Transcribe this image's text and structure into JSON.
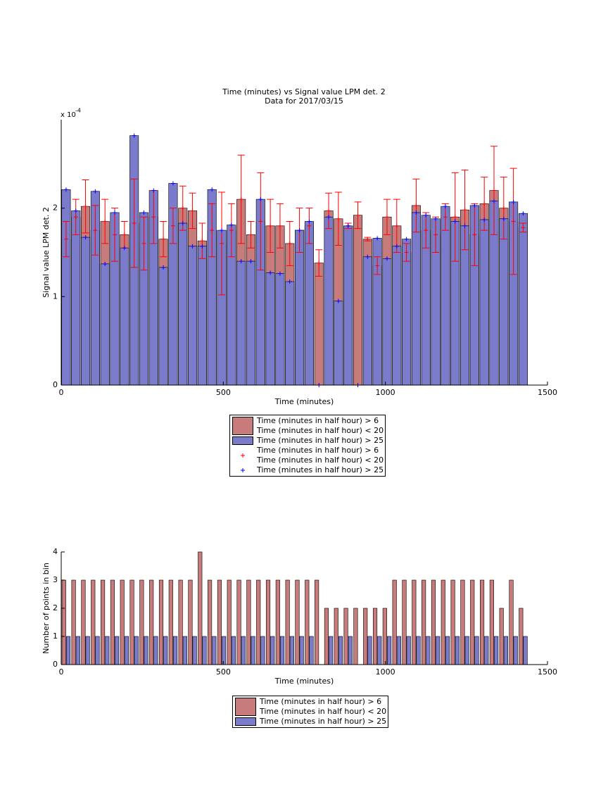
{
  "chart_data": [
    {
      "type": "bar",
      "title": "Time (minutes) vs Signal value LPM det. 2",
      "subtitle": "Data for 2017/03/15",
      "x_label": "Time (minutes)",
      "y_label": "Signal value LPM det. 2",
      "y_scale_label": "x 10",
      "y_scale_exponent": "-4",
      "x": [
        15,
        45,
        75,
        105,
        135,
        165,
        195,
        225,
        255,
        285,
        315,
        345,
        375,
        405,
        435,
        465,
        495,
        525,
        555,
        585,
        615,
        645,
        675,
        705,
        735,
        765,
        795,
        825,
        855,
        885,
        915,
        945,
        975,
        1005,
        1035,
        1065,
        1095,
        1125,
        1155,
        1185,
        1215,
        1245,
        1275,
        1305,
        1335,
        1365,
        1395,
        1425
      ],
      "xlim": [
        0,
        1500
      ],
      "xticks": [
        0,
        500,
        1000,
        1500
      ],
      "ylim": [
        0,
        0.0003
      ],
      "yticks": [
        0,
        {
          "value": 0.0001,
          "label": "1"
        },
        {
          "value": 0.0002,
          "label": "2"
        }
      ],
      "series": [
        {
          "name": "Time (minutes in half hour) > 6\nTime (minutes in half hour) < 20",
          "type": "bar",
          "color": "#c87b7b",
          "values": [
            0.000165,
            0.00019,
            0.000202,
            0.000175,
            0.000185,
            0.00017,
            0.00017,
            0.000183,
            0.00016,
            0.00019,
            0.000165,
            0.00018,
            0.0002,
            0.000197,
            0.000163,
            0.000175,
            0.00016,
            0.000175,
            0.00021,
            0.00017,
            0.000185,
            0.00018,
            0.00018,
            0.00016,
            0.000175,
            0.00018,
            0.000138,
            0.000197,
            0.000188,
            0.00018,
            0.000192,
            0.000165,
            0.000135,
            0.00019,
            0.00018,
            0.00015,
            0.000203,
            0.000175,
            0.00017,
            0.00019,
            0.00019,
            0.000198,
            0.00017,
            0.000205,
            0.00022,
            0.0002,
            0.000185,
            0.000178
          ]
        },
        {
          "name": "Time (minutes in half hour) > 25",
          "type": "bar",
          "color": "#7b7bcc",
          "values": [
            0.000221,
            0.000197,
            0.000167,
            0.000219,
            0.000137,
            0.000195,
            0.000155,
            0.000282,
            0.000195,
            0.00022,
            0.000133,
            0.000228,
            0.000183,
            0.000157,
            0.000157,
            0.000221,
            0.000175,
            0.000181,
            0.00014,
            0.00014,
            0.00021,
            0.000127,
            0.000126,
            0.000117,
            0.000175,
            0.000185,
            0,
            0.00019,
            9.5e-05,
            0.00018,
            0,
            0.000145,
            0.000166,
            0.000143,
            0.000157,
            0.000165,
            0.000195,
            0.000192,
            0.000188,
            0.000202,
            0.000185,
            0.00018,
            0.000203,
            0.000187,
            0.000208,
            0.000188,
            0.000207,
            0.000194
          ]
        },
        {
          "name": "Time (minutes in half hour) > 6\nTime (minutes in half hour) < 20",
          "type": "errorbar",
          "color": "#ff0000",
          "values": [
            0.000165,
            0.00019,
            0.000202,
            0.000175,
            0.000185,
            0.00017,
            0.00017,
            0.000183,
            0.00016,
            0.00019,
            0.000165,
            0.00018,
            0.0002,
            0.000197,
            0.000163,
            0.000175,
            0.00016,
            0.000175,
            0.00021,
            0.00017,
            0.000185,
            0.00018,
            0.00018,
            0.00016,
            0.000175,
            0.00018,
            0.000138,
            0.000197,
            0.000188,
            0.00018,
            0.000192,
            0.000165,
            0.000135,
            0.00019,
            0.00018,
            0.00015,
            0.000203,
            0.000175,
            0.00017,
            0.00019,
            0.00019,
            0.000198,
            0.00017,
            0.000205,
            0.00022,
            0.0002,
            0.000185,
            0.000178
          ],
          "errors": [
            2e-05,
            2e-05,
            3e-05,
            2.8e-05,
            2.5e-05,
            3e-05,
            1.5e-05,
            5e-05,
            3e-05,
            3e-05,
            2e-05,
            2e-05,
            2.5e-05,
            2e-05,
            2e-05,
            3e-05,
            5.8e-05,
            3e-05,
            5e-05,
            1.5e-05,
            5.5e-05,
            3e-05,
            2.5e-05,
            2.5e-05,
            2.5e-05,
            2e-05,
            1.5e-05,
            2e-05,
            3e-05,
            3e-06,
            1.5e-05,
            2e-06,
            1e-05,
            2e-05,
            3e-05,
            1e-05,
            3e-05,
            2e-05,
            2e-05,
            1.5e-05,
            5e-05,
            4.5e-05,
            3.5e-05,
            3e-05,
            5e-05,
            3.5e-05,
            6e-05,
            5e-06
          ]
        },
        {
          "name": "Time (minutes in half hour) > 25",
          "type": "marker",
          "color": "#0000ff",
          "values": [
            0.000221,
            0.000197,
            0.000167,
            0.000219,
            0.000137,
            0.000195,
            0.000155,
            0.000282,
            0.000195,
            0.00022,
            0.000133,
            0.000228,
            0.000183,
            0.000157,
            0.000157,
            0.000221,
            0.000175,
            0.000181,
            0.00014,
            0.00014,
            0.00021,
            0.000127,
            0.000126,
            0.000117,
            0.000175,
            0.000185,
            0,
            0.00019,
            9.5e-05,
            0.00018,
            0,
            0.000145,
            0.000166,
            0.000143,
            0.000157,
            0.000165,
            0.000195,
            0.000192,
            0.000188,
            0.000202,
            0.000185,
            0.00018,
            0.000203,
            0.000187,
            0.000208,
            0.000188,
            0.000207,
            0.000194
          ]
        }
      ]
    },
    {
      "type": "bar",
      "x_label": "Time (minutes)",
      "y_label": "Number of points in bin",
      "x": [
        15,
        45,
        75,
        105,
        135,
        165,
        195,
        225,
        255,
        285,
        315,
        345,
        375,
        405,
        435,
        465,
        495,
        525,
        555,
        585,
        615,
        645,
        675,
        705,
        735,
        765,
        795,
        825,
        855,
        885,
        915,
        945,
        975,
        1005,
        1035,
        1065,
        1095,
        1125,
        1155,
        1185,
        1215,
        1245,
        1275,
        1305,
        1335,
        1365,
        1395,
        1425
      ],
      "xlim": [
        0,
        1500
      ],
      "xticks": [
        0,
        500,
        1000,
        1500
      ],
      "ylim": [
        0,
        4
      ],
      "yticks": [
        0,
        1,
        2,
        3,
        4
      ],
      "series": [
        {
          "name": "Time (minutes in half hour) > 6\nTime (minutes in half hour) < 20",
          "type": "bar",
          "color": "#c87b7b",
          "values": [
            3,
            3,
            3,
            3,
            3,
            3,
            3,
            3,
            3,
            3,
            3,
            3,
            3,
            3,
            4,
            3,
            3,
            3,
            3,
            3,
            3,
            3,
            3,
            3,
            3,
            3,
            3,
            2,
            2,
            2,
            2,
            2,
            2,
            2,
            3,
            3,
            3,
            3,
            3,
            3,
            3,
            3,
            3,
            3,
            3,
            2,
            3,
            2
          ]
        },
        {
          "name": "Time (minutes in half hour) > 25",
          "type": "bar",
          "color": "#7b7bcc",
          "values": [
            1,
            1,
            1,
            1,
            1,
            1,
            1,
            1,
            1,
            1,
            1,
            1,
            1,
            1,
            1,
            1,
            1,
            1,
            1,
            1,
            1,
            1,
            1,
            1,
            1,
            1,
            0,
            1,
            1,
            1,
            0,
            1,
            1,
            1,
            1,
            1,
            1,
            1,
            1,
            1,
            1,
            1,
            1,
            1,
            1,
            1,
            1,
            1
          ]
        }
      ]
    }
  ]
}
